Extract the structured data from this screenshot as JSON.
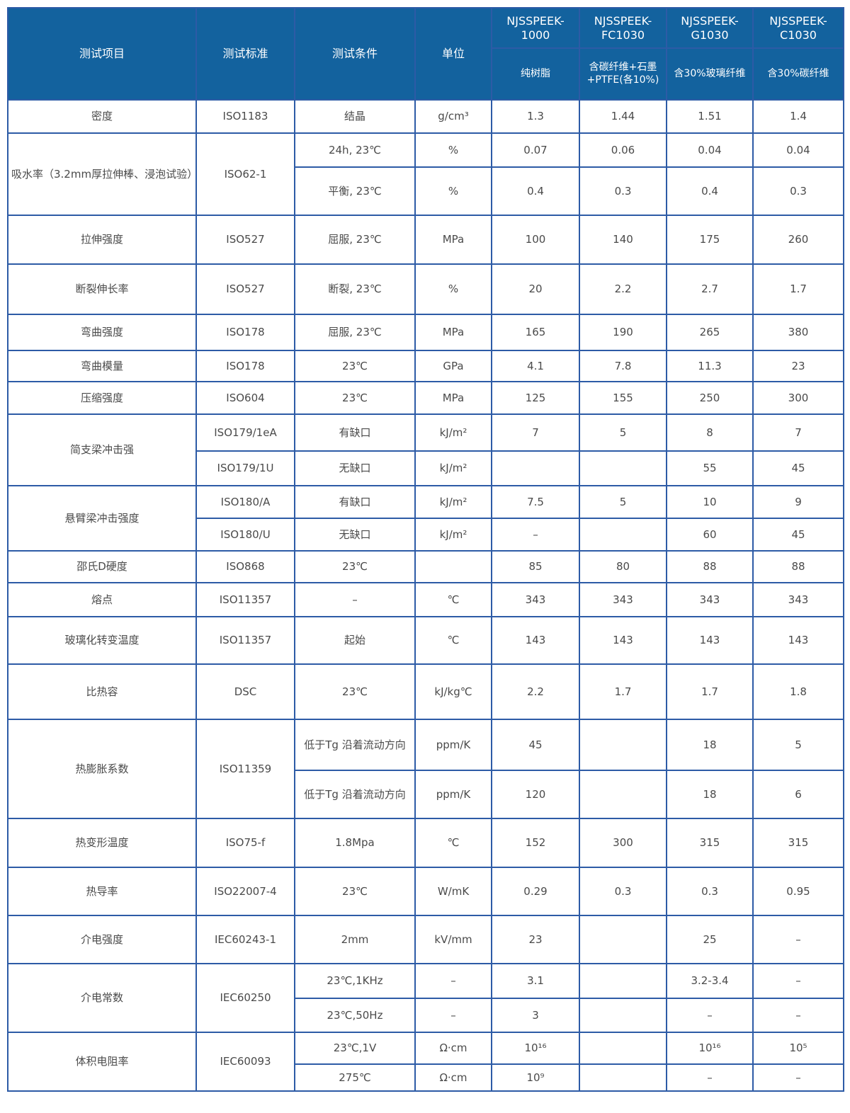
{
  "header": {
    "item": "测试项目",
    "standard": "测试标准",
    "condition": "测试条件",
    "unit": "单位",
    "grades": [
      {
        "name": "NJSSPEEK-1000",
        "desc": "纯树脂"
      },
      {
        "name": "NJSSPEEK-FC1030",
        "desc": "含碳纤维+石墨+PTFE(各10%)"
      },
      {
        "name": "NJSSPEEK-G1030",
        "desc": "含30%玻璃纤维"
      },
      {
        "name": "NJSSPEEK-C1030",
        "desc": "含30%碳纤维"
      }
    ]
  },
  "rows": [
    {
      "cells": [
        {
          "t": "密度"
        },
        {
          "t": "ISO1183"
        },
        {
          "t": "结晶"
        },
        {
          "t": "g/cm³"
        },
        {
          "t": "1.3"
        },
        {
          "t": "1.44"
        },
        {
          "t": "1.51"
        },
        {
          "t": "1.4"
        }
      ]
    },
    {
      "cells": [
        {
          "t": "吸水率（3.2mm厚拉伸棒、浸泡试验）",
          "rs": 2
        },
        {
          "t": "ISO62-1",
          "rs": 2
        },
        {
          "t": "24h, 23℃"
        },
        {
          "t": "%"
        },
        {
          "t": "0.07"
        },
        {
          "t": "0.06"
        },
        {
          "t": "0.04"
        },
        {
          "t": "0.04"
        }
      ]
    },
    {
      "cells": [
        {
          "t": "平衡, 23℃"
        },
        {
          "t": "%"
        },
        {
          "t": "0.4"
        },
        {
          "t": "0.3"
        },
        {
          "t": "0.4"
        },
        {
          "t": "0.3"
        }
      ]
    },
    {
      "cells": [
        {
          "t": "拉伸强度"
        },
        {
          "t": "ISO527"
        },
        {
          "t": "屈服, 23℃"
        },
        {
          "t": "MPa"
        },
        {
          "t": "100"
        },
        {
          "t": "140"
        },
        {
          "t": "175"
        },
        {
          "t": "260"
        }
      ]
    },
    {
      "cells": [
        {
          "t": "断裂伸长率"
        },
        {
          "t": "ISO527"
        },
        {
          "t": "断裂, 23℃"
        },
        {
          "t": "%"
        },
        {
          "t": "20"
        },
        {
          "t": "2.2"
        },
        {
          "t": "2.7"
        },
        {
          "t": "1.7"
        }
      ]
    },
    {
      "cells": [
        {
          "t": "弯曲强度"
        },
        {
          "t": "ISO178"
        },
        {
          "t": "屈服, 23℃"
        },
        {
          "t": "MPa"
        },
        {
          "t": "165"
        },
        {
          "t": "190"
        },
        {
          "t": "265"
        },
        {
          "t": "380"
        }
      ]
    },
    {
      "cells": [
        {
          "t": "弯曲模量"
        },
        {
          "t": "ISO178"
        },
        {
          "t": "23℃"
        },
        {
          "t": "GPa"
        },
        {
          "t": "4.1"
        },
        {
          "t": "7.8"
        },
        {
          "t": "11.3"
        },
        {
          "t": "23"
        }
      ]
    },
    {
      "cells": [
        {
          "t": "压缩强度"
        },
        {
          "t": "ISO604"
        },
        {
          "t": "23℃"
        },
        {
          "t": "MPa"
        },
        {
          "t": "125"
        },
        {
          "t": "155"
        },
        {
          "t": "250"
        },
        {
          "t": "300"
        }
      ]
    },
    {
      "cells": [
        {
          "t": "简支梁冲击强",
          "rs": 2
        },
        {
          "t": "ISO179/1eA"
        },
        {
          "t": "有缺口"
        },
        {
          "t": "kJ/m²"
        },
        {
          "t": "7"
        },
        {
          "t": "5"
        },
        {
          "t": "8"
        },
        {
          "t": "7"
        }
      ]
    },
    {
      "cells": [
        {
          "t": "ISO179/1U"
        },
        {
          "t": "无缺口"
        },
        {
          "t": "kJ/m²"
        },
        {
          "t": ""
        },
        {
          "t": ""
        },
        {
          "t": "55"
        },
        {
          "t": "45"
        }
      ]
    },
    {
      "cells": [
        {
          "t": "悬臂梁冲击强度",
          "rs": 2
        },
        {
          "t": "ISO180/A"
        },
        {
          "t": "有缺口"
        },
        {
          "t": "kJ/m²"
        },
        {
          "t": "7.5"
        },
        {
          "t": "5"
        },
        {
          "t": "10"
        },
        {
          "t": "9"
        }
      ]
    },
    {
      "cells": [
        {
          "t": "ISO180/U"
        },
        {
          "t": "无缺口"
        },
        {
          "t": "kJ/m²"
        },
        {
          "t": "–"
        },
        {
          "t": ""
        },
        {
          "t": "60"
        },
        {
          "t": "45"
        }
      ]
    },
    {
      "cells": [
        {
          "t": "邵氏D硬度"
        },
        {
          "t": "ISO868"
        },
        {
          "t": "23℃"
        },
        {
          "t": ""
        },
        {
          "t": "85"
        },
        {
          "t": "80"
        },
        {
          "t": "88"
        },
        {
          "t": "88"
        }
      ]
    },
    {
      "cells": [
        {
          "t": "熔点"
        },
        {
          "t": "ISO11357"
        },
        {
          "t": "–"
        },
        {
          "t": "℃"
        },
        {
          "t": "343"
        },
        {
          "t": "343"
        },
        {
          "t": "343"
        },
        {
          "t": "343"
        }
      ]
    },
    {
      "cells": [
        {
          "t": "玻璃化转变温度"
        },
        {
          "t": "ISO11357"
        },
        {
          "t": "起始"
        },
        {
          "t": "℃"
        },
        {
          "t": "143"
        },
        {
          "t": "143"
        },
        {
          "t": "143"
        },
        {
          "t": "143"
        }
      ]
    },
    {
      "cells": [
        {
          "t": "比热容"
        },
        {
          "t": "DSC"
        },
        {
          "t": "23℃"
        },
        {
          "t": "kJ/kg℃"
        },
        {
          "t": "2.2"
        },
        {
          "t": "1.7"
        },
        {
          "t": "1.7"
        },
        {
          "t": "1.8"
        }
      ]
    },
    {
      "cells": [
        {
          "t": "热膨胀系数",
          "rs": 2
        },
        {
          "t": "ISO11359",
          "rs": 2
        },
        {
          "t": "低于Tg 沿着流动方向"
        },
        {
          "t": "ppm/K"
        },
        {
          "t": "45"
        },
        {
          "t": ""
        },
        {
          "t": "18"
        },
        {
          "t": "5"
        }
      ]
    },
    {
      "cells": [
        {
          "t": "低于Tg 沿着流动方向"
        },
        {
          "t": "ppm/K"
        },
        {
          "t": "120"
        },
        {
          "t": ""
        },
        {
          "t": "18"
        },
        {
          "t": "6"
        }
      ]
    },
    {
      "cells": [
        {
          "t": "热变形温度"
        },
        {
          "t": "ISO75-f"
        },
        {
          "t": "1.8Mpa"
        },
        {
          "t": "℃"
        },
        {
          "t": "152"
        },
        {
          "t": "300"
        },
        {
          "t": "315"
        },
        {
          "t": "315"
        }
      ]
    },
    {
      "cells": [
        {
          "t": "热导率"
        },
        {
          "t": "ISO22007-4"
        },
        {
          "t": "23℃"
        },
        {
          "t": "W/mK"
        },
        {
          "t": "0.29"
        },
        {
          "t": "0.3"
        },
        {
          "t": "0.3"
        },
        {
          "t": "0.95"
        }
      ]
    },
    {
      "cells": [
        {
          "t": "介电强度"
        },
        {
          "t": "IEC60243-1"
        },
        {
          "t": "2mm"
        },
        {
          "t": "kV/mm"
        },
        {
          "t": "23"
        },
        {
          "t": ""
        },
        {
          "t": "25"
        },
        {
          "t": "–"
        }
      ]
    },
    {
      "cells": [
        {
          "t": "介电常数",
          "rs": 2
        },
        {
          "t": "IEC60250",
          "rs": 2
        },
        {
          "t": "23℃,1KHz"
        },
        {
          "t": "–"
        },
        {
          "t": "3.1"
        },
        {
          "t": ""
        },
        {
          "t": "3.2-3.4"
        },
        {
          "t": "–"
        }
      ]
    },
    {
      "cells": [
        {
          "t": "23℃,50Hz"
        },
        {
          "t": "–"
        },
        {
          "t": "3"
        },
        {
          "t": ""
        },
        {
          "t": "–"
        },
        {
          "t": "–"
        }
      ]
    },
    {
      "cells": [
        {
          "t": "体积电阻率",
          "rs": 2
        },
        {
          "t": "IEC60093",
          "rs": 2
        },
        {
          "t": "23℃,1V"
        },
        {
          "t": "Ω·cm"
        },
        {
          "t": "10¹⁶"
        },
        {
          "t": ""
        },
        {
          "t": "10¹⁶"
        },
        {
          "t": "10⁵"
        }
      ]
    },
    {
      "cells": [
        {
          "t": "275℃"
        },
        {
          "t": "Ω·cm"
        },
        {
          "t": "10⁹"
        },
        {
          "t": ""
        },
        {
          "t": "–"
        },
        {
          "t": "–"
        }
      ]
    }
  ],
  "colors": {
    "header_bg": "#13629e",
    "border": "#2d5ba6",
    "text": "#4a4a4a"
  }
}
